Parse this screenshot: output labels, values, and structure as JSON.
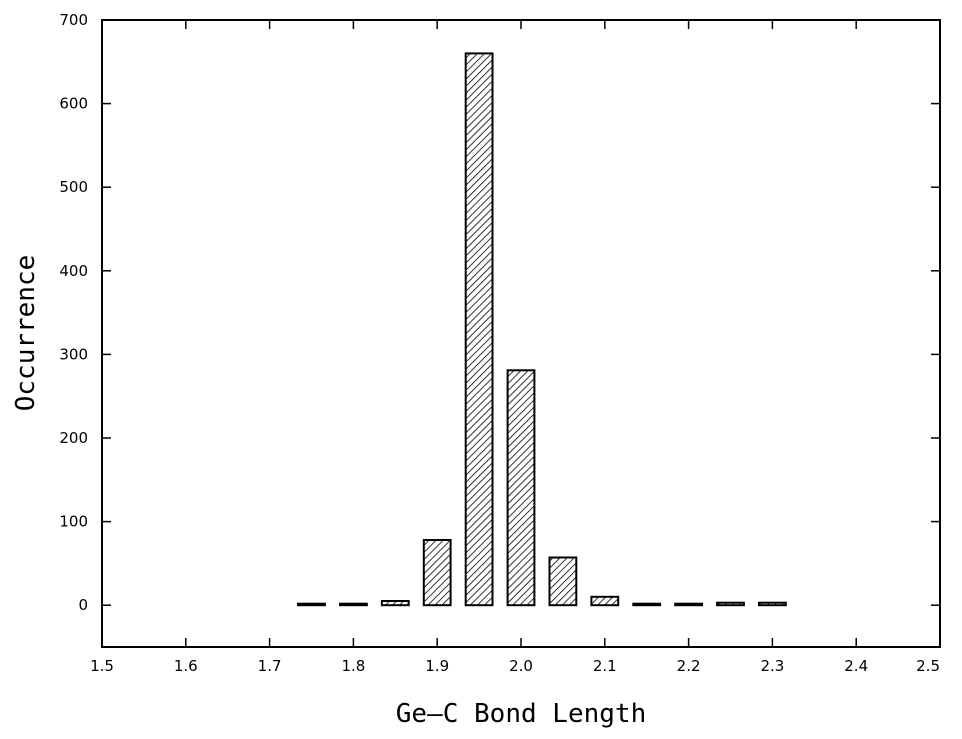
{
  "chart_data": {
    "type": "bar",
    "title": "",
    "xlabel": "Ge–C Bond Length",
    "ylabel": "Occurrence",
    "xlim": [
      1.5,
      2.5
    ],
    "ylim": [
      -50,
      700
    ],
    "x_ticks": [
      "1.5",
      "1.6",
      "1.7",
      "1.8",
      "1.9",
      "2.0",
      "2.1",
      "2.2",
      "2.3",
      "2.4",
      "2.5"
    ],
    "y_ticks": [
      "0",
      "100",
      "200",
      "300",
      "400",
      "500",
      "600",
      "700"
    ],
    "bin_width": 0.05,
    "x": [
      1.75,
      1.8,
      1.85,
      1.9,
      1.95,
      2.0,
      2.05,
      2.1,
      2.15,
      2.2,
      2.25,
      2.3
    ],
    "values": [
      1,
      0,
      5,
      78,
      660,
      281,
      57,
      10,
      1,
      0,
      3,
      3
    ],
    "grid": false,
    "bar_fill": "diagonal-hatch",
    "bar_color": "#000000",
    "background": "#ffffff"
  }
}
